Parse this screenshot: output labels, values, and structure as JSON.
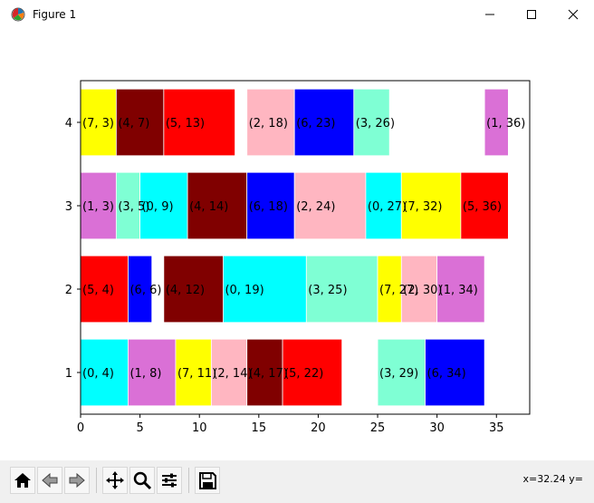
{
  "window": {
    "title": "Figure 1"
  },
  "toolbar": {
    "buttons": [
      "home-icon",
      "back-icon",
      "forward-icon",
      "pan-icon",
      "zoom-icon",
      "configure-subplots-icon",
      "save-icon"
    ],
    "status_text": "x=32.24 y="
  },
  "chart_data": {
    "type": "bar",
    "orientation": "horizontal-broken",
    "xlim": [
      0,
      37.8
    ],
    "ylim": [
      0.5,
      4.5
    ],
    "xticks": [
      "0",
      "5",
      "10",
      "15",
      "20",
      "25",
      "30",
      "35"
    ],
    "yticks": [
      "1",
      "2",
      "3",
      "4"
    ],
    "rows": [
      {
        "y": 1,
        "segments": [
          {
            "start": 0,
            "end": 4,
            "label": "(0, 4)",
            "color": "#00ffff"
          },
          {
            "start": 4,
            "end": 8,
            "label": "(1, 8)",
            "color": "#da70d6"
          },
          {
            "start": 8,
            "end": 11,
            "label": "(7, 11)",
            "color": "#ffff00"
          },
          {
            "start": 11,
            "end": 14,
            "label": "(2, 14)",
            "color": "#ffb6c1"
          },
          {
            "start": 14,
            "end": 17,
            "label": "(4, 17)",
            "color": "#800000"
          },
          {
            "start": 17,
            "end": 22,
            "label": "(5, 22)",
            "color": "#ff0000"
          },
          {
            "start": 25,
            "end": 29,
            "label": "(3, 29)",
            "color": "#7fffd4"
          },
          {
            "start": 29,
            "end": 34,
            "label": "(6, 34)",
            "color": "#0000ff"
          }
        ]
      },
      {
        "y": 2,
        "segments": [
          {
            "start": 0,
            "end": 4,
            "label": "(5, 4)",
            "color": "#ff0000"
          },
          {
            "start": 4,
            "end": 6,
            "label": "(6, 6)",
            "color": "#0000ff"
          },
          {
            "start": 7,
            "end": 12,
            "label": "(4, 12)",
            "color": "#800000"
          },
          {
            "start": 12,
            "end": 19,
            "label": "(0, 19)",
            "color": "#00ffff"
          },
          {
            "start": 19,
            "end": 25,
            "label": "(3, 25)",
            "color": "#7fffd4"
          },
          {
            "start": 25,
            "end": 27,
            "label": "(7, 27)",
            "color": "#ffff00"
          },
          {
            "start": 27,
            "end": 30,
            "label": "(2, 30)",
            "color": "#ffb6c1"
          },
          {
            "start": 30,
            "end": 34,
            "label": "(1, 34)",
            "color": "#da70d6"
          }
        ]
      },
      {
        "y": 3,
        "segments": [
          {
            "start": 0,
            "end": 3,
            "label": "(1, 3)",
            "color": "#da70d6"
          },
          {
            "start": 3,
            "end": 5,
            "label": "(3, 5)",
            "color": "#7fffd4"
          },
          {
            "start": 5,
            "end": 9,
            "label": "(0, 9)",
            "color": "#00ffff"
          },
          {
            "start": 9,
            "end": 14,
            "label": "(4, 14)",
            "color": "#800000"
          },
          {
            "start": 14,
            "end": 18,
            "label": "(6, 18)",
            "color": "#0000ff"
          },
          {
            "start": 18,
            "end": 24,
            "label": "(2, 24)",
            "color": "#ffb6c1"
          },
          {
            "start": 24,
            "end": 27,
            "label": "(0, 27)",
            "color": "#00ffff"
          },
          {
            "start": 27,
            "end": 32,
            "label": "(7, 32)",
            "color": "#ffff00"
          },
          {
            "start": 32,
            "end": 36,
            "label": "(5, 36)",
            "color": "#ff0000"
          }
        ]
      },
      {
        "y": 4,
        "segments": [
          {
            "start": 0,
            "end": 3,
            "label": "(7, 3)",
            "color": "#ffff00"
          },
          {
            "start": 3,
            "end": 7,
            "label": "(4, 7)",
            "color": "#800000"
          },
          {
            "start": 7,
            "end": 13,
            "label": "(5, 13)",
            "color": "#ff0000"
          },
          {
            "start": 14,
            "end": 18,
            "label": "(2, 18)",
            "color": "#ffb6c1"
          },
          {
            "start": 18,
            "end": 23,
            "label": "(6, 23)",
            "color": "#0000ff"
          },
          {
            "start": 23,
            "end": 26,
            "label": "(3, 26)",
            "color": "#7fffd4"
          },
          {
            "start": 34,
            "end": 36,
            "label": "(1, 36)",
            "color": "#da70d6"
          }
        ]
      }
    ]
  }
}
